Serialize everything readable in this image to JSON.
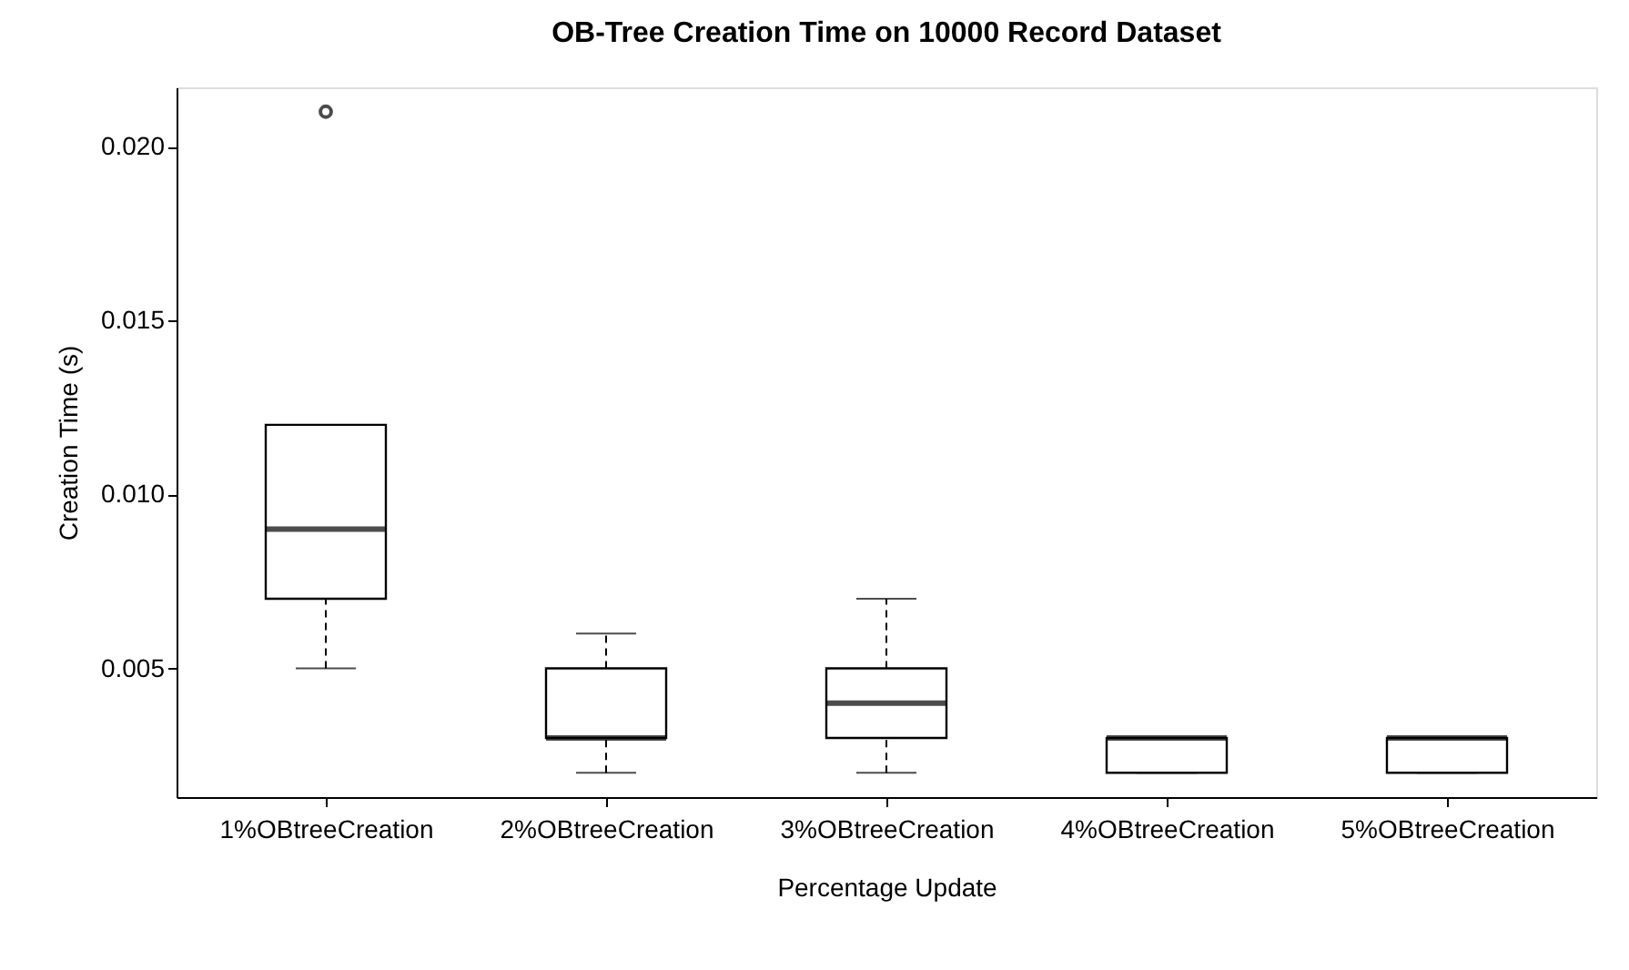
{
  "chart_data": {
    "type": "box",
    "title": "OB-Tree Creation Time on 10000 Record Dataset",
    "xlabel": "Percentage Update",
    "ylabel": "Creation Time (s)",
    "categories": [
      "1%OBtreeCreation",
      "2%OBtreeCreation",
      "3%OBtreeCreation",
      "4%OBtreeCreation",
      "5%OBtreeCreation"
    ],
    "boxes": [
      {
        "low": 0.005,
        "q1": 0.007,
        "median": 0.009,
        "q3": 0.012,
        "high": 0.012,
        "outliers": [
          0.021
        ]
      },
      {
        "low": 0.002,
        "q1": 0.003,
        "median": 0.003,
        "q3": 0.005,
        "high": 0.006
      },
      {
        "low": 0.002,
        "q1": 0.003,
        "median": 0.004,
        "q3": 0.005,
        "high": 0.007
      },
      {
        "low": 0.002,
        "q1": 0.002,
        "median": 0.003,
        "q3": 0.003,
        "high": 0.003
      },
      {
        "low": 0.002,
        "q1": 0.002,
        "median": 0.003,
        "q3": 0.003,
        "high": 0.003
      }
    ],
    "ylim": [
      0.0013,
      0.0217
    ],
    "yticks": [
      0.005,
      {
        "value": 0.01,
        "label": "0.010"
      },
      0.015,
      {
        "value": 0.02,
        "label": "0.020"
      }
    ],
    "grid": false
  }
}
